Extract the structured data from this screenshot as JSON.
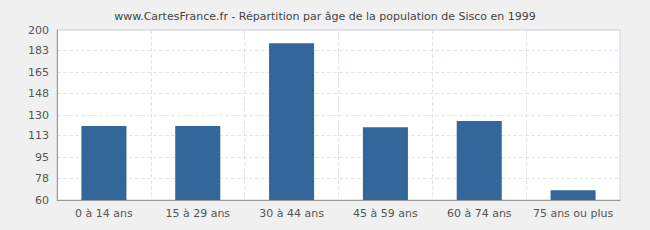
{
  "chart_data": {
    "type": "bar",
    "title": "www.CartesFrance.fr - Répartition par âge de la population de Sisco en 1999",
    "categories": [
      "0 à 14 ans",
      "15 à 29 ans",
      "30 à 44 ans",
      "45 à 59 ans",
      "60 à 74 ans",
      "75 ans ou plus"
    ],
    "values": [
      121,
      121,
      189,
      120,
      125,
      68
    ],
    "color": "#336699",
    "ylim": [
      60,
      200
    ],
    "yticks": [
      60,
      78,
      95,
      113,
      130,
      148,
      165,
      183,
      200
    ],
    "grid": true
  }
}
